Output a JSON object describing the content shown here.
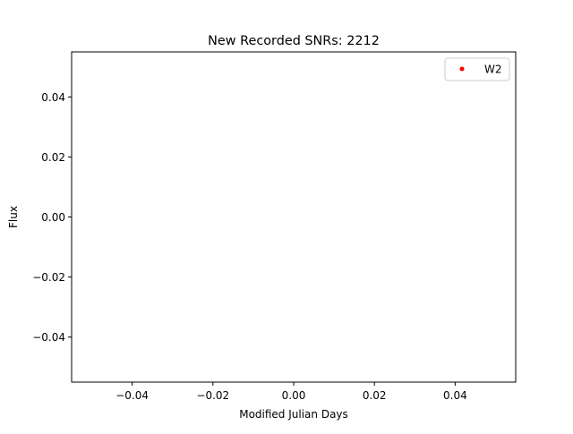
{
  "chart_data": {
    "type": "scatter",
    "title": "New Recorded SNRs: 2212",
    "xlabel": "Modified Julian Days",
    "ylabel": "Flux",
    "xlim": [
      -0.055,
      0.055
    ],
    "ylim": [
      -0.055,
      0.055
    ],
    "xticks": [
      -0.04,
      -0.02,
      0.0,
      0.02,
      0.04
    ],
    "xtick_labels": [
      "−0.04",
      "−0.02",
      "0.00",
      "0.02",
      "0.04"
    ],
    "yticks": [
      -0.04,
      -0.02,
      0.0,
      0.02,
      0.04
    ],
    "ytick_labels": [
      "−0.04",
      "−0.02",
      "0.00",
      "0.02",
      "0.04"
    ],
    "grid": false,
    "legend_position": "top-right",
    "series": [
      {
        "name": "W2",
        "color": "#ff0000",
        "marker": "dot",
        "x": [],
        "y": []
      }
    ]
  }
}
